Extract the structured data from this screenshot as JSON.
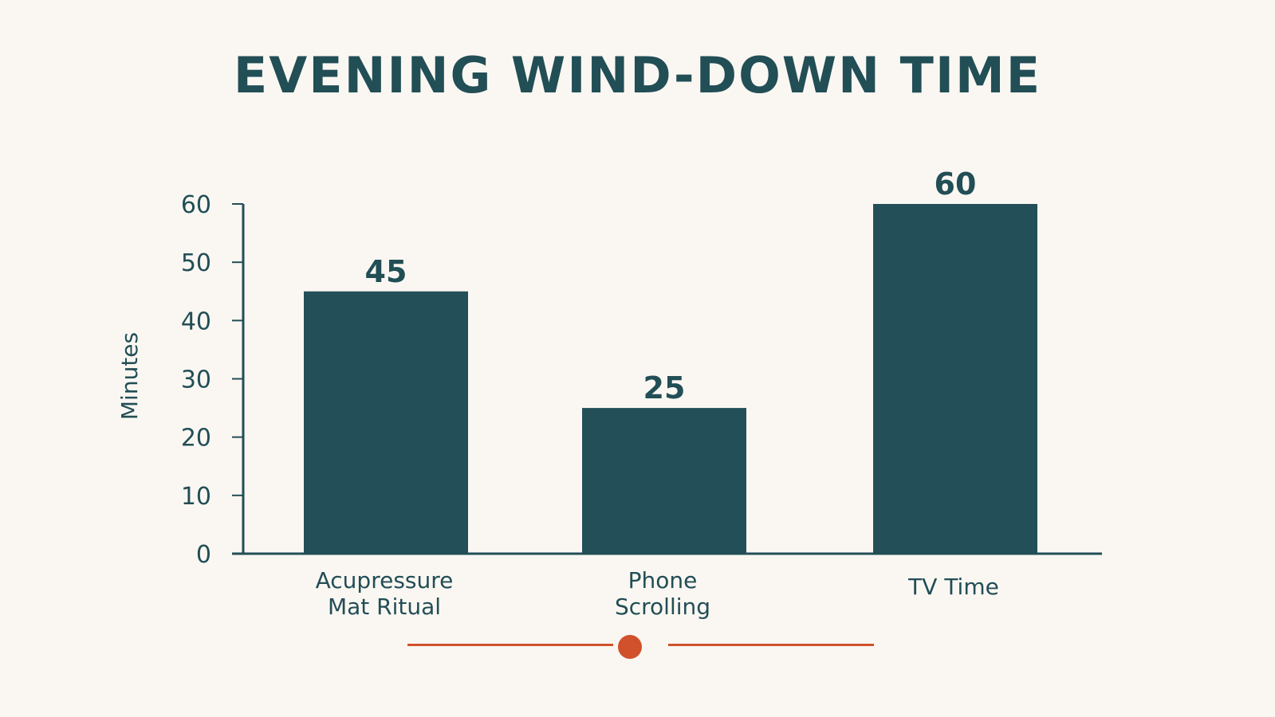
{
  "chart_data": {
    "type": "bar",
    "title": "EVENING WIND-DOWN TIME",
    "xlabel": "",
    "ylabel": "Minutes",
    "categories": [
      [
        "Acupressure",
        "Mat Ritual"
      ],
      [
        "Phone",
        "Scrolling"
      ],
      [
        "TV Time"
      ]
    ],
    "values": [
      45,
      25,
      60
    ],
    "ylim": [
      0,
      60
    ],
    "yticks": [
      0,
      10,
      20,
      30,
      40,
      50,
      60
    ],
    "data_labels": true,
    "grid": false,
    "colors": {
      "bar": "#235058",
      "text": "#224e56",
      "axis": "#224e56",
      "accent": "#d1512c",
      "background": "#faf7f2"
    }
  }
}
